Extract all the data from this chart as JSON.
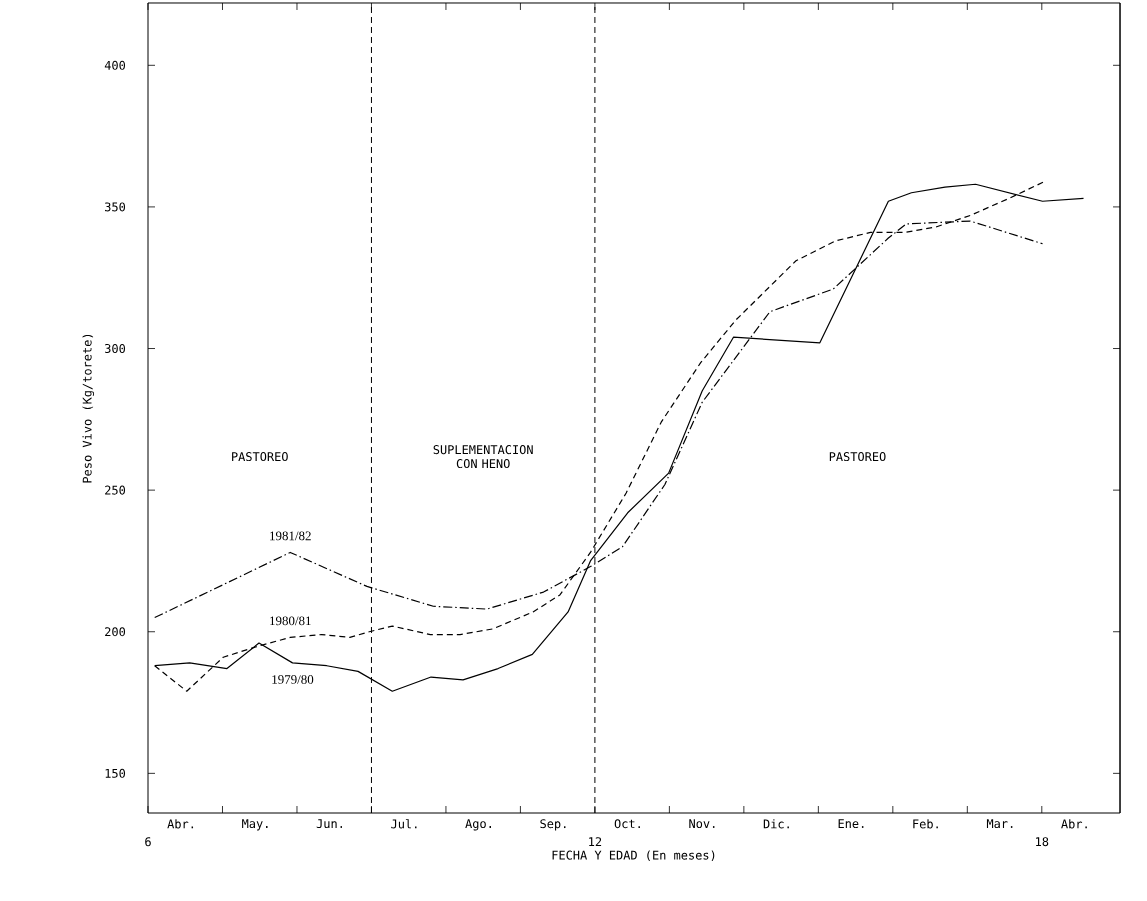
{
  "chart_data": {
    "type": "line",
    "xlabel": "FECHA Y EDAD (En meses)",
    "ylabel": "Peso Vivo (Kg/torete)",
    "xlim": [
      6,
      19.05
    ],
    "ylim": [
      136,
      422
    ],
    "xticks": [
      6,
      12,
      18,
      {
        "value": 7,
        "label": null
      },
      {
        "value": 8,
        "label": null
      },
      {
        "value": 9,
        "label": null
      },
      {
        "value": 10,
        "label": null
      },
      {
        "value": 11,
        "label": null
      },
      {
        "value": 13,
        "label": null
      },
      {
        "value": 14,
        "label": null
      },
      {
        "value": 15,
        "label": null
      },
      {
        "value": 16,
        "label": null
      },
      {
        "value": 17,
        "label": null
      }
    ],
    "yticks": [
      150,
      200,
      250,
      300,
      350,
      400
    ],
    "ref_lines": [
      {
        "axis": "x",
        "value": 9,
        "line_style": "dashed"
      },
      {
        "axis": "x",
        "value": 12,
        "line_style": "dashed"
      }
    ],
    "annotations": [
      "PASTOREO",
      "SUPLEMENTACION CON HENO",
      "PASTOREO",
      "Abr.",
      "May.",
      "Jun.",
      "Jul.",
      "Ago.",
      "Sep.",
      "Oct.",
      "Nov.",
      "Dic.",
      "Ene.",
      "Feb.",
      "Mar.",
      "Abr."
    ],
    "series": [
      {
        "name": "1979/80",
        "color": "#000000",
        "line_style": "solid",
        "x": [
          6.09,
          6.56,
          7.06,
          7.49,
          7.94,
          8.4,
          8.82,
          9.28,
          9.8,
          10.23,
          10.7,
          11.16,
          11.64,
          11.94,
          12.44,
          12.99,
          13.44,
          13.86,
          15.02,
          15.94,
          16.25,
          16.7,
          17.11,
          18.01,
          18.56
        ],
        "values": [
          188,
          189,
          187,
          196,
          189,
          188,
          186,
          179,
          184,
          183,
          187,
          192,
          207,
          225,
          242,
          256,
          285,
          304,
          302,
          352,
          355,
          357,
          358,
          352,
          353
        ]
      },
      {
        "name": "1980/81",
        "color": "#000000",
        "line_style": "dashed",
        "x": [
          6.09,
          6.52,
          7.01,
          7.49,
          7.91,
          8.33,
          8.71,
          8.97,
          9.28,
          9.79,
          10.19,
          10.63,
          11.17,
          11.53,
          11.94,
          12.42,
          12.89,
          13.42,
          13.89,
          14.7,
          15.23,
          15.7,
          16.16,
          16.59,
          17.04,
          17.56,
          18.04
        ],
        "values": [
          188,
          179,
          191,
          195,
          198,
          199,
          198,
          200,
          202,
          199,
          199,
          201,
          207,
          213,
          228,
          249,
          274,
          295,
          310,
          331,
          338,
          341,
          341,
          343,
          347,
          353,
          359
        ]
      },
      {
        "name": "1981/82",
        "color": "#000000",
        "line_style": "dashdot",
        "x": [
          6.09,
          7.91,
          8.94,
          9.83,
          10.55,
          11.31,
          11.94,
          12.37,
          12.94,
          13.44,
          14.35,
          15.2,
          15.94,
          16.18,
          17.04,
          18.01
        ],
        "values": [
          205,
          228,
          216,
          209,
          208,
          214,
          223,
          230,
          252,
          281,
          313,
          321,
          339,
          344,
          345,
          337
        ]
      }
    ]
  }
}
